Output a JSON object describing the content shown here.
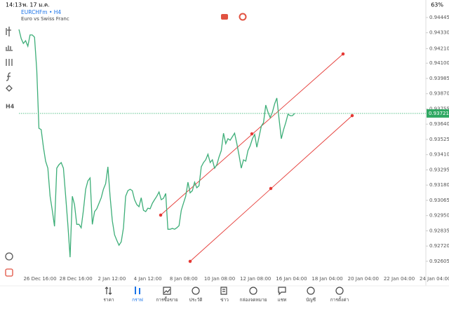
{
  "status_bar": {
    "time": "14:13",
    "date": "พ. 17 ม.ค.",
    "battery": "63%"
  },
  "header": {
    "symbol": "EURCHFm • H4",
    "description": "Euro vs Swiss Franc"
  },
  "toolbar": {
    "timeframe": "H4"
  },
  "chart_data": {
    "type": "line",
    "xtick_labels": [
      "26 Dec 16:00",
      "28 Dec 16:00",
      "2 Jan 12:00",
      "4 Jan 12:00",
      "8 Jan 08:00",
      "10 Jan 08:00",
      "12 Jan 08:00",
      "16 Jan 04:00",
      "18 Jan 04:00",
      "20 Jan 04:00",
      "22 Jan 04:00",
      "24 Jan 04:00"
    ],
    "series": [
      {
        "name": "EURCHFm",
        "color": "#3dae78",
        "values": [
          0.94355,
          0.94286,
          0.94249,
          0.9427,
          0.94228,
          0.94313,
          0.94313,
          0.94297,
          0.94048,
          0.93609,
          0.93599,
          0.93466,
          0.93361,
          0.93308,
          0.93096,
          0.9299,
          0.92869,
          0.93308,
          0.93334,
          0.9335,
          0.93308,
          0.93096,
          0.92884,
          0.92636,
          0.93096,
          0.93033,
          0.92884,
          0.92884,
          0.92858,
          0.9299,
          0.93149,
          0.93212,
          0.93234,
          0.92884,
          0.9298,
          0.93001,
          0.93043,
          0.93085,
          0.93149,
          0.93191,
          0.93318,
          0.93096,
          0.92911,
          0.92805,
          0.92763,
          0.92726,
          0.92752,
          0.92858,
          0.93096,
          0.93138,
          0.93149,
          0.93138,
          0.9307,
          0.93033,
          0.93017,
          0.93085,
          0.9299,
          0.9298,
          0.93006,
          0.93001,
          0.93043,
          0.9307,
          0.93096,
          0.93128,
          0.9307,
          0.9308,
          0.93117,
          0.92847,
          0.92847,
          0.92853,
          0.92847,
          0.92858,
          0.92874,
          0.9299,
          0.93043,
          0.93096,
          0.93202,
          0.93122,
          0.93138,
          0.93202,
          0.9316,
          0.93175,
          0.93318,
          0.9335,
          0.93371,
          0.93413,
          0.9335,
          0.93371,
          0.93308,
          0.93334,
          0.93392,
          0.9344,
          0.93572,
          0.93493,
          0.9353,
          0.93519,
          0.93546,
          0.93572,
          0.93493,
          0.93403,
          0.93308,
          0.93371,
          0.93361,
          0.9344,
          0.93477,
          0.9353,
          0.93562,
          0.93466,
          0.93546,
          0.93625,
          0.93651,
          0.93784,
          0.93731,
          0.93689,
          0.93731,
          0.93794,
          0.93837,
          0.93678,
          0.9353,
          0.93599,
          0.93651,
          0.93715,
          0.93704,
          0.93704,
          0.93721
        ]
      }
    ],
    "ylim": [
      0.9252,
      0.9454
    ],
    "yticks": [
      0.94445,
      {
        "value": 0.9433,
        "label": "0.94330"
      },
      {
        "value": 0.9421,
        "label": "0.94210"
      },
      {
        "value": 0.941,
        "label": "0.94100"
      },
      0.93985,
      {
        "value": 0.9387,
        "label": "0.93870"
      },
      0.93755,
      {
        "value": 0.9364,
        "label": "0.93640"
      },
      0.93525,
      {
        "value": 0.9341,
        "label": "0.93410"
      },
      0.93295,
      {
        "value": 0.9318,
        "label": "0.93180"
      },
      0.93065,
      {
        "value": 0.9295,
        "label": "0.92950"
      },
      0.92835,
      {
        "value": 0.9272,
        "label": "0.92720"
      },
      0.92605
    ],
    "current_price": 0.93721
  },
  "nav": [
    "ราคา",
    "กราฟ",
    "การซื้อขาย",
    "ประวัติ",
    "ข่าว",
    "กล่องจดหมาย",
    "แชท",
    "บัญชี",
    "การตั้งค่า"
  ]
}
